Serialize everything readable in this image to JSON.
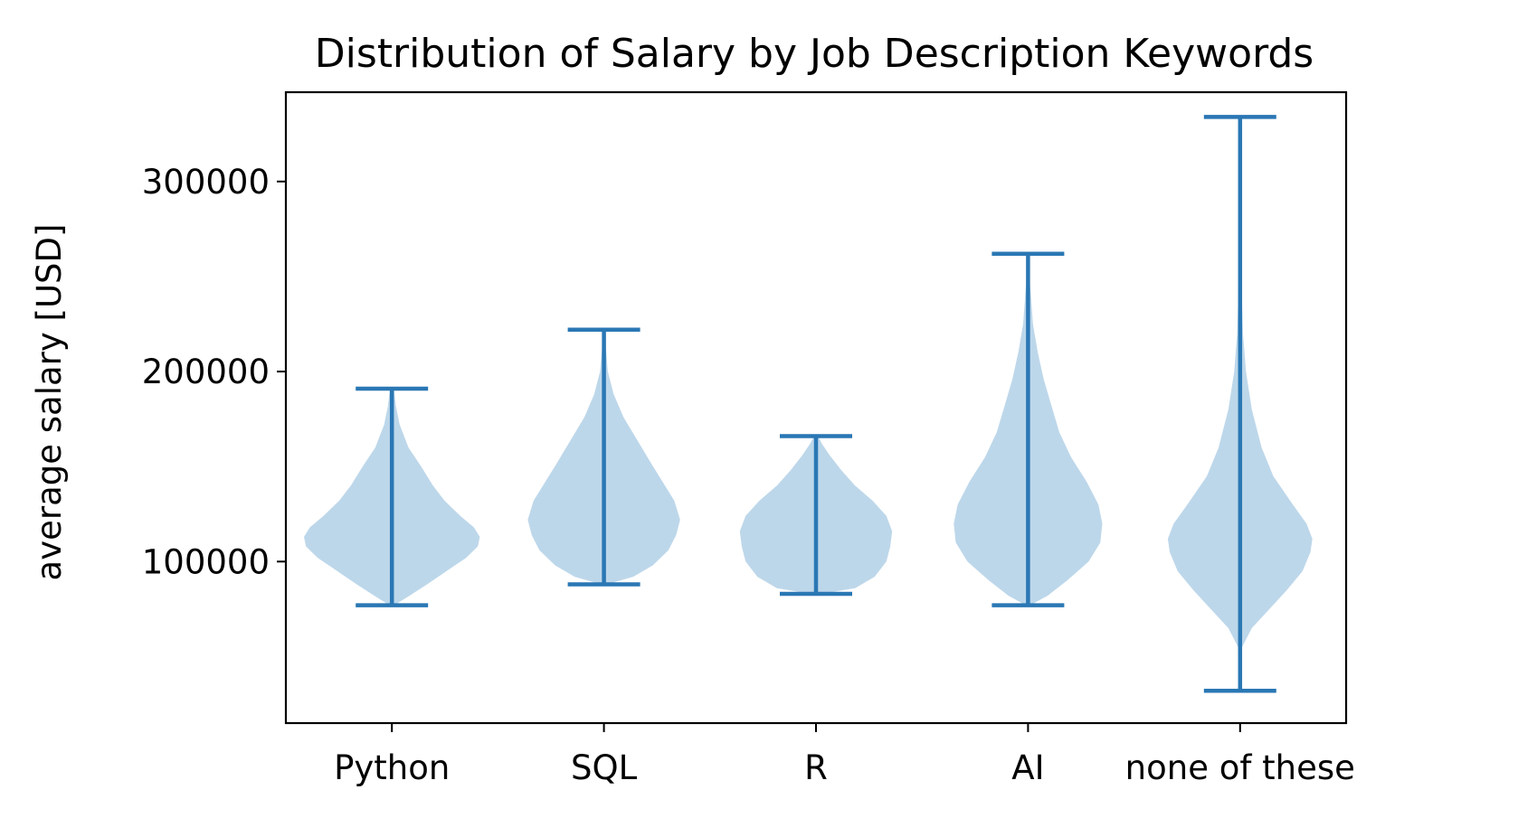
{
  "chart_data": {
    "type": "violin",
    "title": "Distribution of Salary by Job Description Keywords",
    "xlabel": "",
    "ylabel": "average salary [USD]",
    "ylim": [
      15000,
      347000
    ],
    "yticks": [
      100000,
      200000,
      300000
    ],
    "categories": [
      "Python",
      "SQL",
      "R",
      "AI",
      "none of these"
    ],
    "violins": [
      {
        "category": "Python",
        "min": 77000,
        "max": 191000,
        "density": [
          [
            77000,
            0.02
          ],
          [
            82000,
            0.18
          ],
          [
            88000,
            0.36
          ],
          [
            95000,
            0.56
          ],
          [
            102000,
            0.76
          ],
          [
            108000,
            0.88
          ],
          [
            113000,
            0.9
          ],
          [
            118000,
            0.84
          ],
          [
            124000,
            0.7
          ],
          [
            132000,
            0.54
          ],
          [
            140000,
            0.42
          ],
          [
            150000,
            0.3
          ],
          [
            160000,
            0.17
          ],
          [
            172000,
            0.08
          ],
          [
            182000,
            0.04
          ],
          [
            191000,
            0.02
          ]
        ]
      },
      {
        "category": "SQL",
        "min": 88000,
        "max": 222000,
        "density": [
          [
            88000,
            0.03
          ],
          [
            92000,
            0.3
          ],
          [
            98000,
            0.5
          ],
          [
            106000,
            0.66
          ],
          [
            114000,
            0.74
          ],
          [
            122000,
            0.78
          ],
          [
            132000,
            0.72
          ],
          [
            142000,
            0.6
          ],
          [
            152000,
            0.48
          ],
          [
            164000,
            0.34
          ],
          [
            176000,
            0.2
          ],
          [
            188000,
            0.1
          ],
          [
            200000,
            0.04
          ],
          [
            212000,
            0.02
          ],
          [
            222000,
            0.01
          ]
        ]
      },
      {
        "category": "R",
        "min": 83000,
        "max": 166000,
        "density": [
          [
            83000,
            0.05
          ],
          [
            86000,
            0.4
          ],
          [
            92000,
            0.6
          ],
          [
            100000,
            0.72
          ],
          [
            108000,
            0.76
          ],
          [
            116000,
            0.78
          ],
          [
            124000,
            0.72
          ],
          [
            132000,
            0.58
          ],
          [
            140000,
            0.4
          ],
          [
            148000,
            0.26
          ],
          [
            156000,
            0.14
          ],
          [
            162000,
            0.06
          ],
          [
            166000,
            0.02
          ]
        ]
      },
      {
        "category": "AI",
        "min": 77000,
        "max": 262000,
        "density": [
          [
            77000,
            0.02
          ],
          [
            82000,
            0.2
          ],
          [
            90000,
            0.4
          ],
          [
            100000,
            0.62
          ],
          [
            110000,
            0.74
          ],
          [
            120000,
            0.76
          ],
          [
            130000,
            0.72
          ],
          [
            142000,
            0.6
          ],
          [
            155000,
            0.44
          ],
          [
            168000,
            0.32
          ],
          [
            182000,
            0.24
          ],
          [
            196000,
            0.16
          ],
          [
            210000,
            0.1
          ],
          [
            225000,
            0.05
          ],
          [
            240000,
            0.03
          ],
          [
            252000,
            0.01
          ],
          [
            262000,
            0.005
          ]
        ]
      },
      {
        "category": "none of these",
        "min": 32000,
        "max": 334000,
        "density": [
          [
            32000,
            0.005
          ],
          [
            45000,
            0.01
          ],
          [
            55000,
            0.02
          ],
          [
            65000,
            0.12
          ],
          [
            75000,
            0.3
          ],
          [
            85000,
            0.48
          ],
          [
            95000,
            0.64
          ],
          [
            105000,
            0.72
          ],
          [
            112000,
            0.74
          ],
          [
            120000,
            0.68
          ],
          [
            130000,
            0.54
          ],
          [
            145000,
            0.34
          ],
          [
            160000,
            0.22
          ],
          [
            180000,
            0.12
          ],
          [
            200000,
            0.06
          ],
          [
            220000,
            0.03
          ],
          [
            245000,
            0.015
          ],
          [
            270000,
            0.008
          ],
          [
            300000,
            0.005
          ],
          [
            334000,
            0.003
          ]
        ]
      }
    ],
    "colors": {
      "body": "#bdd7ea",
      "lines": "#2a77b4",
      "axes": "#000000"
    },
    "grid": false
  }
}
